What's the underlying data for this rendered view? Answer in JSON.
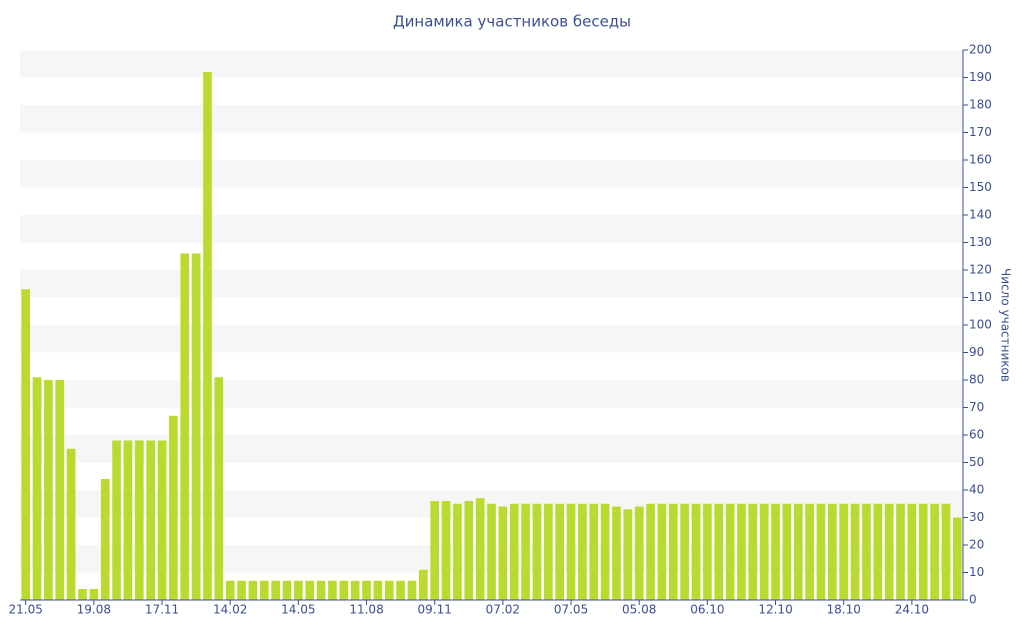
{
  "chart_data": {
    "type": "bar",
    "title": "Динамика участников беседы",
    "y_axis_label": "Число участников",
    "categories": [
      "21.05",
      null,
      null,
      null,
      null,
      null,
      "19.08",
      null,
      null,
      null,
      null,
      null,
      "17.11",
      null,
      null,
      null,
      null,
      null,
      "14.02",
      null,
      null,
      null,
      null,
      null,
      "14.05",
      null,
      null,
      null,
      null,
      null,
      "11.08",
      null,
      null,
      null,
      null,
      null,
      "09.11",
      null,
      null,
      null,
      null,
      null,
      "07.02",
      null,
      null,
      null,
      null,
      null,
      "07.05",
      null,
      null,
      null,
      null,
      null,
      "05.08",
      null,
      null,
      null,
      null,
      null,
      "06.10",
      null,
      null,
      null,
      null,
      null,
      "12.10",
      null,
      null,
      null,
      null,
      null,
      "18.10",
      null,
      null,
      null,
      null,
      null,
      "24.10",
      null,
      null,
      null,
      null
    ],
    "values": [
      113,
      81,
      80,
      80,
      55,
      4,
      4,
      44,
      58,
      58,
      58,
      58,
      58,
      67,
      126,
      126,
      192,
      81,
      7,
      7,
      7,
      7,
      7,
      7,
      7,
      7,
      7,
      7,
      7,
      7,
      7,
      7,
      7,
      7,
      7,
      11,
      36,
      36,
      35,
      36,
      37,
      35,
      34,
      35,
      35,
      35,
      35,
      35,
      35,
      35,
      35,
      35,
      34,
      33,
      34,
      35,
      35,
      35,
      35,
      35,
      35,
      35,
      35,
      35,
      35,
      35,
      35,
      35,
      35,
      35,
      35,
      35,
      35,
      35,
      35,
      35,
      35,
      35,
      35,
      35,
      35,
      35,
      30
    ],
    "color": "#bada2f",
    "ylim": [
      0,
      200
    ],
    "yticks": [
      0,
      10,
      20,
      30,
      40,
      50,
      60,
      70,
      80,
      90,
      100,
      110,
      120,
      130,
      140,
      150,
      160,
      170,
      180,
      190,
      200
    ],
    "grid": true
  }
}
